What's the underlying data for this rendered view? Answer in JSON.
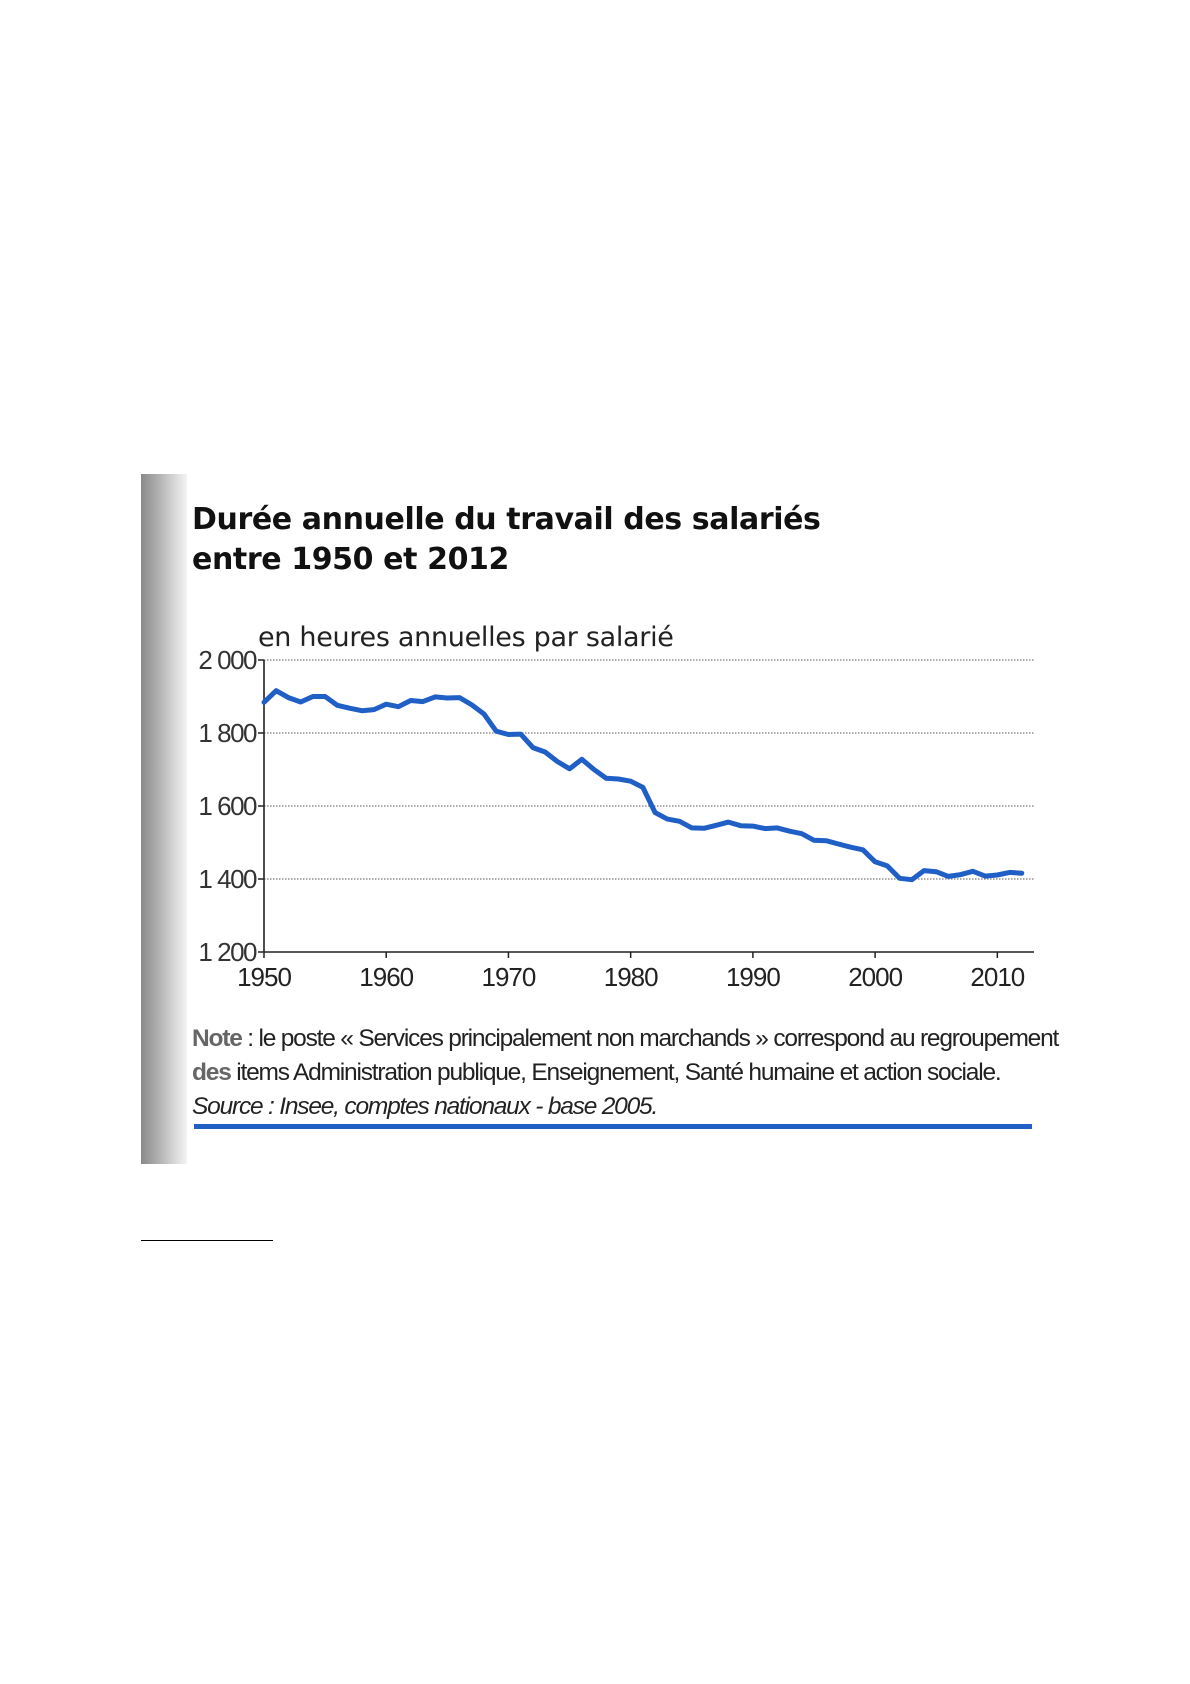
{
  "chart_data": {
    "type": "line",
    "title": "Durée annuelle du travail des salariés entre 1950 et 2012",
    "title_lines": [
      "Durée annuelle du travail des salariés",
      "entre 1950 et 2012"
    ],
    "ylabel": "en heures annuelles par salarié",
    "xlabel": "",
    "ylim": [
      1200,
      2000
    ],
    "xlim": [
      1950,
      2013
    ],
    "yticks": [
      2000,
      1800,
      1600,
      1400,
      1200
    ],
    "ytick_labels": [
      "2 000",
      "1 800",
      "1 600",
      "1 400",
      "1 200"
    ],
    "xticks": [
      1950,
      1960,
      1970,
      1980,
      1990,
      2000,
      2010
    ],
    "xtick_labels": [
      "1950",
      "1960",
      "1970",
      "1980",
      "1990",
      "2000",
      "2010"
    ],
    "grid": "horizontal dotted",
    "line_color": "#1f5fc6",
    "series": [
      {
        "x": [
          1950,
          1951,
          1952,
          1953,
          1954,
          1955,
          1956,
          1957,
          1958,
          1959,
          1960,
          1961,
          1962,
          1963,
          1964,
          1965,
          1966,
          1967,
          1968,
          1969,
          1970,
          1971,
          1972,
          1973,
          1974,
          1975,
          1976,
          1977,
          1978,
          1979,
          1980,
          1981,
          1982,
          1983,
          1984,
          1985,
          1986,
          1987,
          1988,
          1989,
          1990,
          1991,
          1992,
          1993,
          1994,
          1995,
          1996,
          1997,
          1998,
          1999,
          2000,
          2001,
          2002,
          2003,
          2004,
          2005,
          2006,
          2007,
          2008,
          2009,
          2010,
          2011,
          2012
        ],
        "values": [
          1884,
          1916,
          1897,
          1885,
          1900,
          1900,
          1876,
          1868,
          1861,
          1864,
          1879,
          1872,
          1889,
          1886,
          1899,
          1896,
          1897,
          1877,
          1852,
          1805,
          1796,
          1797,
          1760,
          1748,
          1722,
          1702,
          1728,
          1700,
          1676,
          1674,
          1668,
          1651,
          1582,
          1564,
          1558,
          1540,
          1539,
          1547,
          1556,
          1546,
          1545,
          1538,
          1540,
          1531,
          1524,
          1506,
          1505,
          1496,
          1487,
          1480,
          1447,
          1436,
          1402,
          1398,
          1423,
          1420,
          1407,
          1412,
          1421,
          1408,
          1411,
          1418,
          1416
        ]
      }
    ]
  },
  "notes": {
    "note_label": "Note",
    "note_line1": " : le poste « Services principalement non marchands » correspond au regroupement",
    "note_line2_label": "des",
    "note_line2": " items Administration publique, Enseignement, Santé humaine et action sociale.",
    "source": "Source : Insee, comptes nationaux - base 2005."
  },
  "colors": {
    "accent": "#1f5fc6",
    "text": "#111111",
    "grid": "#7a7a7a"
  }
}
